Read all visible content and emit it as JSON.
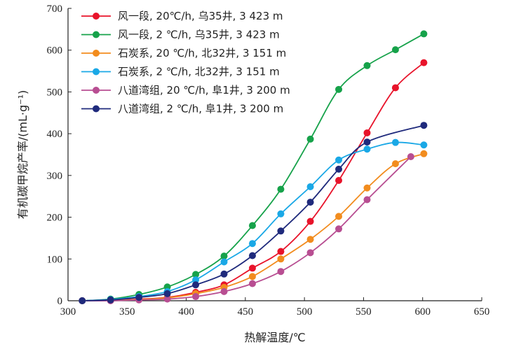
{
  "chart_data": {
    "type": "line",
    "xlabel": "热解温度/℃",
    "ylabel": "有机碳甲烷产率/(mL·g⁻¹)",
    "xlim": [
      300,
      650
    ],
    "ylim": [
      0,
      700
    ],
    "xticks": [
      300,
      350,
      400,
      450,
      500,
      550,
      600,
      650
    ],
    "yticks": [
      0,
      100,
      200,
      300,
      400,
      500,
      600,
      700
    ],
    "grid": false,
    "legend_position": "top-left",
    "series": [
      {
        "name": "风一段, 20℃/h, 乌35井, 3 423 m",
        "color": "#e8132a",
        "x": [
          312,
          336,
          360,
          384,
          408,
          432,
          456,
          480,
          505,
          529,
          553,
          577,
          601
        ],
        "y": [
          0,
          1,
          4,
          8,
          20,
          38,
          78,
          118,
          190,
          288,
          402,
          510,
          570
        ]
      },
      {
        "name": "风一段, 2 ℃/h, 乌35井, 3 423 m",
        "color": "#16a24a",
        "x": [
          312,
          336,
          360,
          384,
          408,
          432,
          456,
          480,
          505,
          529,
          553,
          577,
          601
        ],
        "y": [
          0,
          4,
          15,
          33,
          63,
          107,
          180,
          267,
          387,
          506,
          563,
          601,
          639
        ]
      },
      {
        "name": "石炭系, 20 ℃/h, 北32井, 3 151 m",
        "color": "#f28c1e",
        "x": [
          312,
          336,
          360,
          384,
          408,
          432,
          456,
          480,
          505,
          529,
          553,
          577,
          601
        ],
        "y": [
          0,
          1,
          3,
          7,
          17,
          32,
          58,
          100,
          147,
          202,
          270,
          328,
          352
        ]
      },
      {
        "name": "石炭系, 2 ℃/h, 北32井, 3 151 m",
        "color": "#1aa8e6",
        "x": [
          312,
          336,
          360,
          384,
          408,
          432,
          456,
          480,
          505,
          529,
          553,
          577,
          601
        ],
        "y": [
          0,
          3,
          10,
          22,
          50,
          93,
          137,
          208,
          273,
          337,
          363,
          379,
          373
        ]
      },
      {
        "name": "八道湾组, 20 ℃/h, 阜1井, 3 200 m",
        "color": "#b84e92",
        "x": [
          312,
          336,
          360,
          384,
          408,
          432,
          456,
          480,
          505,
          529,
          553,
          590
        ],
        "y": [
          0,
          0,
          2,
          4,
          10,
          22,
          41,
          70,
          115,
          172,
          242,
          345
        ]
      },
      {
        "name": "八道湾组, 2 ℃/h, 阜1井, 3 200 m",
        "color": "#1f2a7c",
        "x": [
          312,
          336,
          360,
          384,
          408,
          432,
          456,
          480,
          505,
          529,
          553,
          601
        ],
        "y": [
          0,
          2,
          8,
          17,
          38,
          64,
          108,
          167,
          236,
          315,
          380,
          420
        ]
      }
    ]
  }
}
